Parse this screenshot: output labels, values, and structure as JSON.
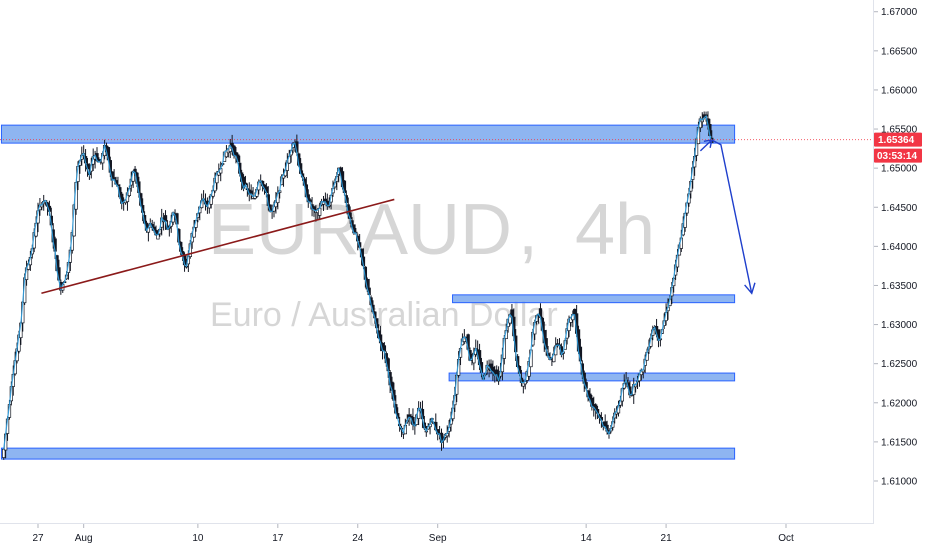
{
  "chart_data": {
    "type": "candlestick",
    "symbol": "EURAUD",
    "interval": "4h",
    "description": "Euro / Australian Dollar",
    "ylim": [
      1.6045,
      1.6715
    ],
    "y_ticks": [
      "1.67000",
      "1.66500",
      "1.66000",
      "1.65500",
      "1.65000",
      "1.64500",
      "1.64000",
      "1.63500",
      "1.63000",
      "1.62500",
      "1.62000",
      "1.61500",
      "1.61000"
    ],
    "x_ticks": [
      {
        "label": "27",
        "pos": 0.0
      },
      {
        "label": "Aug",
        "pos": 4.0
      },
      {
        "label": "10",
        "pos": 14.0
      },
      {
        "label": "17",
        "pos": 21.0
      },
      {
        "label": "24",
        "pos": 28.0
      },
      {
        "label": "Sep",
        "pos": 35.0
      },
      {
        "label": "14",
        "pos": 48.0
      },
      {
        "label": "21",
        "pos": 55.0
      },
      {
        "label": "Oct",
        "pos": 65.5
      }
    ],
    "last_price": "1.65364",
    "countdown": "03:53:14",
    "price_path": [
      [
        -3.0,
        1.613
      ],
      [
        -2.5,
        1.619
      ],
      [
        -2.2,
        1.623
      ],
      [
        -1.5,
        1.629
      ],
      [
        -1.0,
        1.637
      ],
      [
        -0.5,
        1.639
      ],
      [
        0.0,
        1.644
      ],
      [
        0.5,
        1.646
      ],
      [
        1.0,
        1.645
      ],
      [
        1.5,
        1.64
      ],
      [
        2.0,
        1.6345
      ],
      [
        2.5,
        1.636
      ],
      [
        3.0,
        1.64
      ],
      [
        3.5,
        1.65
      ],
      [
        4.0,
        1.652
      ],
      [
        4.5,
        1.649
      ],
      [
        5.0,
        1.652
      ],
      [
        5.5,
        1.6505
      ],
      [
        6.0,
        1.653
      ],
      [
        6.5,
        1.649
      ],
      [
        7.0,
        1.648
      ],
      [
        7.5,
        1.645
      ],
      [
        8.0,
        1.647
      ],
      [
        8.5,
        1.65
      ],
      [
        9.0,
        1.646
      ],
      [
        9.5,
        1.642
      ],
      [
        10.0,
        1.643
      ],
      [
        10.5,
        1.641
      ],
      [
        11.0,
        1.644
      ],
      [
        11.5,
        1.642
      ],
      [
        12.0,
        1.645
      ],
      [
        12.5,
        1.64
      ],
      [
        13.0,
        1.637
      ],
      [
        13.5,
        1.641
      ],
      [
        14.0,
        1.644
      ],
      [
        14.5,
        1.646
      ],
      [
        15.0,
        1.645
      ],
      [
        15.5,
        1.648
      ],
      [
        16.0,
        1.65
      ],
      [
        16.5,
        1.652
      ],
      [
        17.0,
        1.653
      ],
      [
        17.5,
        1.651
      ],
      [
        18.0,
        1.648
      ],
      [
        18.5,
        1.647
      ],
      [
        19.0,
        1.646
      ],
      [
        19.5,
        1.649
      ],
      [
        20.0,
        1.647
      ],
      [
        20.5,
        1.644
      ],
      [
        21.0,
        1.646
      ],
      [
        21.5,
        1.649
      ],
      [
        22.0,
        1.651
      ],
      [
        22.5,
        1.654
      ],
      [
        23.0,
        1.65
      ],
      [
        23.5,
        1.647
      ],
      [
        24.0,
        1.645
      ],
      [
        24.5,
        1.644
      ],
      [
        25.0,
        1.646
      ],
      [
        25.5,
        1.645
      ],
      [
        26.0,
        1.648
      ],
      [
        26.5,
        1.65
      ],
      [
        27.0,
        1.646
      ],
      [
        27.5,
        1.643
      ],
      [
        28.0,
        1.641
      ],
      [
        28.5,
        1.638
      ],
      [
        29.0,
        1.634
      ],
      [
        29.5,
        1.631
      ],
      [
        30.0,
        1.628
      ],
      [
        30.5,
        1.626
      ],
      [
        31.0,
        1.622
      ],
      [
        31.5,
        1.618
      ],
      [
        32.0,
        1.616
      ],
      [
        32.5,
        1.6185
      ],
      [
        33.0,
        1.617
      ],
      [
        33.5,
        1.6195
      ],
      [
        34.0,
        1.616
      ],
      [
        34.5,
        1.618
      ],
      [
        35.0,
        1.6165
      ],
      [
        35.5,
        1.615
      ],
      [
        36.0,
        1.6165
      ],
      [
        36.5,
        1.62
      ],
      [
        37.0,
        1.627
      ],
      [
        37.5,
        1.629
      ],
      [
        38.0,
        1.625
      ],
      [
        38.5,
        1.627
      ],
      [
        39.0,
        1.623
      ],
      [
        39.5,
        1.625
      ],
      [
        40.0,
        1.624
      ],
      [
        40.5,
        1.623
      ],
      [
        41.0,
        1.629
      ],
      [
        41.5,
        1.632
      ],
      [
        42.0,
        1.625
      ],
      [
        42.5,
        1.622
      ],
      [
        43.0,
        1.624
      ],
      [
        43.5,
        1.63
      ],
      [
        44.0,
        1.632
      ],
      [
        44.5,
        1.627
      ],
      [
        45.0,
        1.625
      ],
      [
        45.5,
        1.628
      ],
      [
        46.0,
        1.626
      ],
      [
        46.5,
        1.63
      ],
      [
        47.0,
        1.632
      ],
      [
        47.5,
        1.626
      ],
      [
        48.0,
        1.622
      ],
      [
        48.5,
        1.62
      ],
      [
        49.0,
        1.619
      ],
      [
        49.5,
        1.6175
      ],
      [
        50.0,
        1.616
      ],
      [
        50.5,
        1.618
      ],
      [
        51.0,
        1.62
      ],
      [
        51.5,
        1.623
      ],
      [
        52.0,
        1.621
      ],
      [
        52.5,
        1.623
      ],
      [
        53.0,
        1.624
      ],
      [
        53.5,
        1.627
      ],
      [
        54.0,
        1.63
      ],
      [
        54.5,
        1.628
      ],
      [
        55.0,
        1.631
      ],
      [
        55.5,
        1.634
      ],
      [
        56.0,
        1.638
      ],
      [
        56.5,
        1.642
      ],
      [
        57.0,
        1.646
      ],
      [
        57.5,
        1.651
      ],
      [
        58.0,
        1.656
      ],
      [
        58.5,
        1.657
      ],
      [
        59.0,
        1.6536
      ]
    ],
    "zones": [
      {
        "name": "top-resistance",
        "from": -3.2,
        "to": 61.0,
        "low": 1.6532,
        "high": 1.6555
      },
      {
        "name": "mid-zone-upper",
        "from": 36.3,
        "to": 61.0,
        "low": 1.6328,
        "high": 1.6338
      },
      {
        "name": "mid-zone-lower",
        "from": 36.0,
        "to": 61.0,
        "low": 1.6228,
        "high": 1.6238
      },
      {
        "name": "bottom-support",
        "from": -3.2,
        "to": 61.0,
        "low": 1.6128,
        "high": 1.6142
      }
    ],
    "trendline": {
      "x1": 0.3,
      "y1": 1.634,
      "x2": 31.2,
      "y2": 1.646
    },
    "projection": [
      {
        "x": 58.0,
        "y": 1.6522
      },
      {
        "x": 59.0,
        "y": 1.6536
      },
      {
        "x": 59.8,
        "y": 1.653
      },
      {
        "x": 62.5,
        "y": 1.634
      }
    ]
  },
  "colors": {
    "candle": "#131722",
    "line": "#2f9ee0",
    "zone_fill": "#7aa8ef",
    "zone_stroke": "#2962ff",
    "trendline": "#8b1a1a",
    "arrow": "#1f3fcc",
    "price_tag": "#f23645",
    "watermark": "#d6d6d6",
    "axis": "#e0e3eb"
  }
}
